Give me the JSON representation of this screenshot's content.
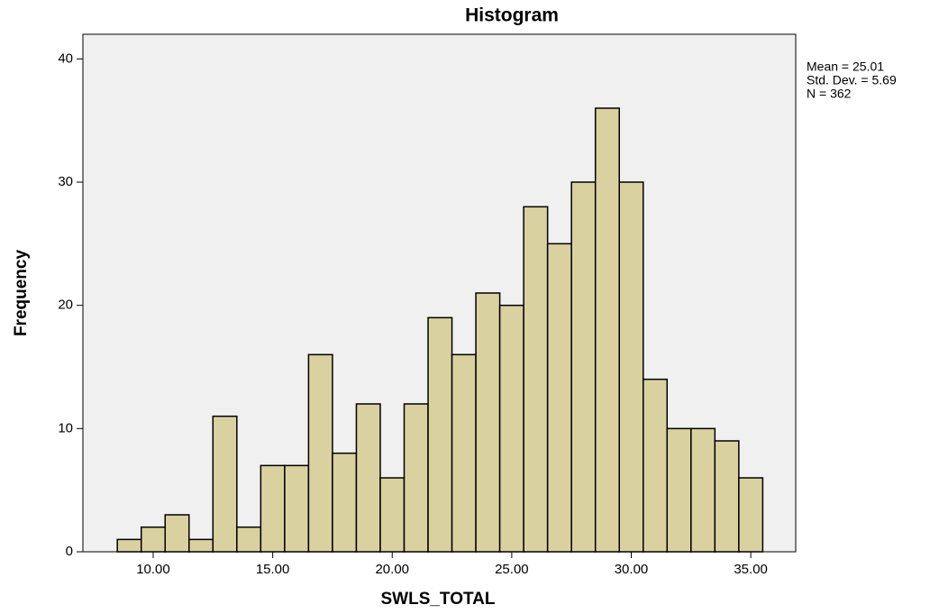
{
  "chart_data": {
    "type": "histogram",
    "title": "Histogram",
    "x_label": "SWLS_TOTAL",
    "y_label": "Frequency",
    "annotations": [
      "Mean = 25.01",
      "Std. Dev. = 5.69",
      "N = 362"
    ],
    "bins": [
      8.5,
      9.5,
      10.5,
      11.5,
      12.5,
      13.5,
      14.5,
      15.5,
      16.5,
      17.5,
      18.5,
      19.5,
      20.5,
      21.5,
      22.5,
      23.5,
      24.5,
      25.5,
      26.5,
      27.5,
      28.5,
      29.5,
      30.5,
      31.5,
      32.5,
      33.5,
      34.5,
      35.5
    ],
    "values": [
      1,
      2,
      3,
      1,
      11,
      2,
      7,
      7,
      16,
      8,
      12,
      6,
      12,
      19,
      16,
      21,
      20,
      28,
      25,
      30,
      36,
      30,
      14,
      10,
      10,
      9,
      6
    ],
    "color": "#d9d1a0",
    "xlim": [
      7.06,
      36.88
    ],
    "ylim": [
      0,
      42
    ],
    "xticks": [
      {
        "value": 10,
        "label": "10.00"
      },
      {
        "value": 15,
        "label": "15.00"
      },
      {
        "value": 20,
        "label": "20.00"
      },
      {
        "value": 25,
        "label": "25.00"
      },
      {
        "value": 30,
        "label": "30.00"
      },
      {
        "value": 35,
        "label": "35.00"
      }
    ],
    "yticks": [
      0,
      10,
      20,
      30,
      40
    ]
  }
}
